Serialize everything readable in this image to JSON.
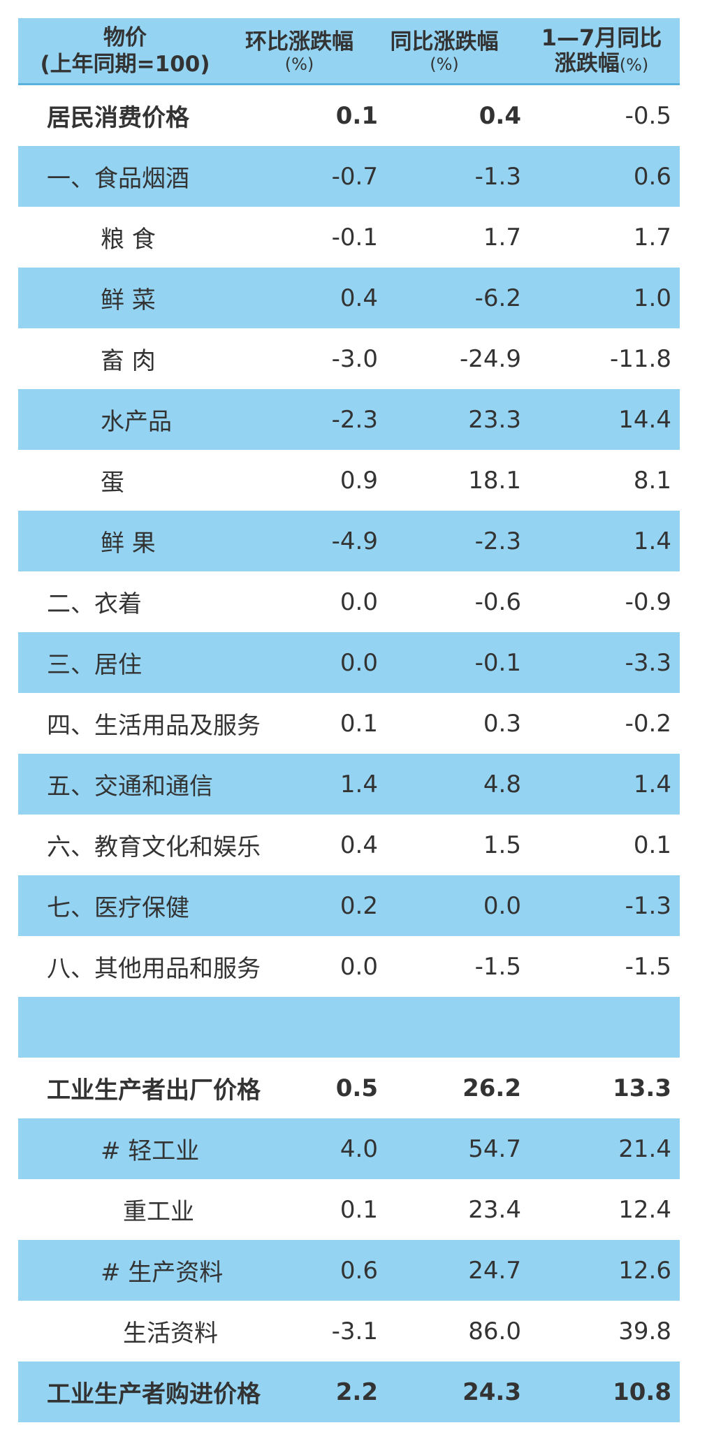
{
  "header": {
    "col0_line1": "物价",
    "col0_line2": "(上年同期=100)",
    "col1_line1": "环比涨跌幅",
    "col1_line2": "(%)",
    "col2_line1": "同比涨跌幅",
    "col2_line2": "(%)",
    "col3_line1": "1—7月同比",
    "col3_line2": "涨跌幅",
    "col3_unit": "(%)"
  },
  "rows": [
    {
      "label": "居民消费价格",
      "mom": "0.1",
      "yoy": "0.4",
      "ytd": "-0.5"
    },
    {
      "label": "一、食品烟酒",
      "mom": "-0.7",
      "yoy": "-1.3",
      "ytd": "0.6"
    },
    {
      "label": "粮 食",
      "mom": "-0.1",
      "yoy": "1.7",
      "ytd": "1.7"
    },
    {
      "label": "鲜 菜",
      "mom": "0.4",
      "yoy": "-6.2",
      "ytd": "1.0"
    },
    {
      "label": "畜 肉",
      "mom": "-3.0",
      "yoy": "-24.9",
      "ytd": "-11.8"
    },
    {
      "label": "水产品",
      "mom": "-2.3",
      "yoy": "23.3",
      "ytd": "14.4"
    },
    {
      "label": "蛋",
      "mom": "0.9",
      "yoy": "18.1",
      "ytd": "8.1"
    },
    {
      "label": "鲜 果",
      "mom": "-4.9",
      "yoy": "-2.3",
      "ytd": "1.4"
    },
    {
      "label": "二、衣着",
      "mom": "0.0",
      "yoy": "-0.6",
      "ytd": "-0.9"
    },
    {
      "label": "三、居住",
      "mom": "0.0",
      "yoy": "-0.1",
      "ytd": "-3.3"
    },
    {
      "label": "四、生活用品及服务",
      "mom": "0.1",
      "yoy": "0.3",
      "ytd": "-0.2"
    },
    {
      "label": "五、交通和通信",
      "mom": "1.4",
      "yoy": "4.8",
      "ytd": "1.4"
    },
    {
      "label": "六、教育文化和娱乐",
      "mom": "0.4",
      "yoy": "1.5",
      "ytd": "0.1"
    },
    {
      "label": "七、医疗保健",
      "mom": "0.2",
      "yoy": "0.0",
      "ytd": "-1.3"
    },
    {
      "label": "八、其他用品和服务",
      "mom": "0.0",
      "yoy": "-1.5",
      "ytd": "-1.5"
    },
    {
      "label": "",
      "mom": "",
      "yoy": "",
      "ytd": ""
    },
    {
      "label": "工业生产者出厂价格",
      "mom": "0.5",
      "yoy": "26.2",
      "ytd": "13.3"
    },
    {
      "label": "# 轻工业",
      "mom": "4.0",
      "yoy": "54.7",
      "ytd": "21.4"
    },
    {
      "label": "重工业",
      "mom": "0.1",
      "yoy": "23.4",
      "ytd": "12.4"
    },
    {
      "label": "# 生产资料",
      "mom": "0.6",
      "yoy": "24.7",
      "ytd": "12.6"
    },
    {
      "label": "生活资料",
      "mom": "-3.1",
      "yoy": "86.0",
      "ytd": "39.8"
    },
    {
      "label": "工业生产者购进价格",
      "mom": "2.2",
      "yoy": "24.3",
      "ytd": "10.8"
    }
  ]
}
